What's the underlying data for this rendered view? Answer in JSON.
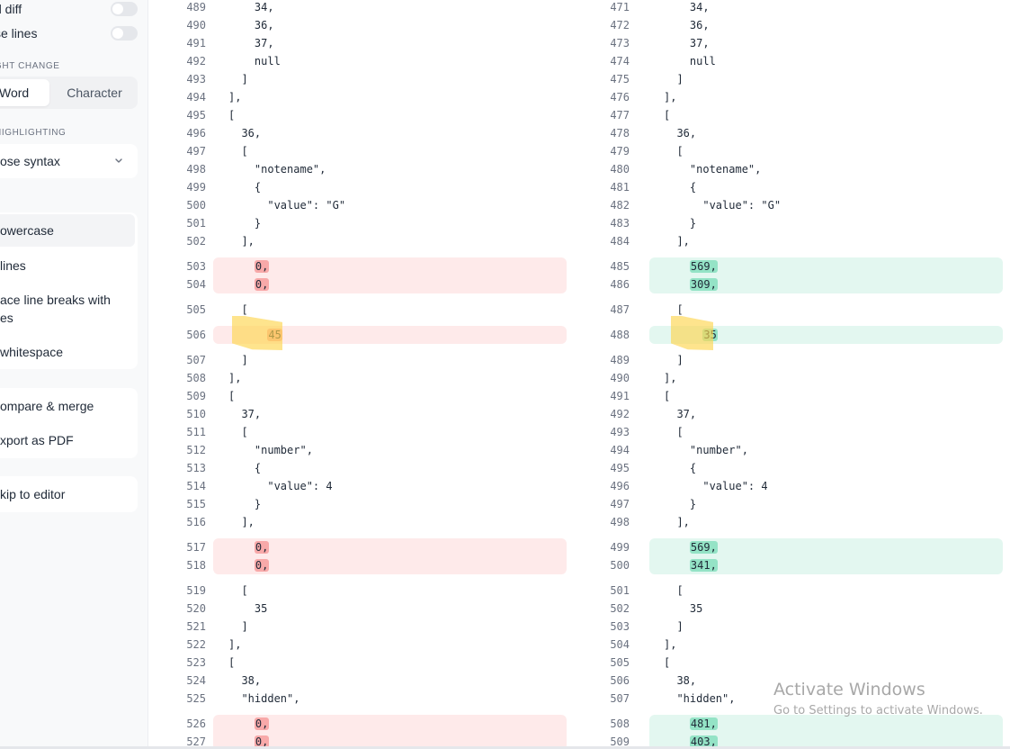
{
  "sidebar": {
    "toggles": [
      {
        "label": "d diff",
        "on": false
      },
      {
        "label": "se lines",
        "on": false
      }
    ],
    "highlight_change": {
      "section_label": "GHT CHANGE",
      "options": [
        "Word",
        "Character"
      ],
      "selected": "Word"
    },
    "syntax_highlighting": {
      "section_label": "HIGHLIGHTING",
      "selected": "ose syntax",
      "icon": "chevron-down-icon"
    },
    "transform_items": [
      {
        "label": "owercase",
        "active": true
      },
      {
        "label": "lines",
        "active": false
      },
      {
        "label": "ace line breaks with",
        "label2": "es",
        "active": false
      },
      {
        "label": " whitespace",
        "active": false
      }
    ],
    "action_items": [
      {
        "label": "ompare & merge"
      },
      {
        "label": "xport as PDF"
      }
    ],
    "skip_item": {
      "label": "kip to editor"
    }
  },
  "diff": {
    "colors": {
      "deleted_bg": "#feeaea",
      "deleted_token": "#f8a9a9",
      "added_bg": "#e3f7f0",
      "added_token": "#94e3c6",
      "annotation": "#fdd650"
    },
    "left": {
      "lines": [
        {
          "n": "489",
          "text": "    34,"
        },
        {
          "n": "490",
          "text": "    36,"
        },
        {
          "n": "491",
          "text": "    37,"
        },
        {
          "n": "492",
          "text": "    null"
        },
        {
          "n": "493",
          "text": "  ]"
        },
        {
          "n": "494",
          "text": "],"
        },
        {
          "n": "495",
          "text": "["
        },
        {
          "n": "496",
          "text": "  36,"
        },
        {
          "n": "497",
          "text": "  ["
        },
        {
          "n": "498",
          "text": "    \"notename\","
        },
        {
          "n": "499",
          "text": "    {"
        },
        {
          "n": "500",
          "text": "      \"value\": \"G\""
        },
        {
          "n": "501",
          "text": "    }"
        },
        {
          "n": "502",
          "text": "  ],"
        },
        {
          "n": "503",
          "text": "0,",
          "changed": true
        },
        {
          "n": "504",
          "text": "0,",
          "changed": true
        },
        {
          "n": "505",
          "text": "  ["
        },
        {
          "n": "506",
          "text": "45",
          "changed": true
        },
        {
          "n": "507",
          "text": "  ]"
        },
        {
          "n": "508",
          "text": "],"
        },
        {
          "n": "509",
          "text": "["
        },
        {
          "n": "510",
          "text": "  37,"
        },
        {
          "n": "511",
          "text": "  ["
        },
        {
          "n": "512",
          "text": "    \"number\","
        },
        {
          "n": "513",
          "text": "    {"
        },
        {
          "n": "514",
          "text": "      \"value\": 4"
        },
        {
          "n": "515",
          "text": "    }"
        },
        {
          "n": "516",
          "text": "  ],"
        },
        {
          "n": "517",
          "text": "0,",
          "changed": true
        },
        {
          "n": "518",
          "text": "0,",
          "changed": true
        },
        {
          "n": "519",
          "text": "  ["
        },
        {
          "n": "520",
          "text": "    35"
        },
        {
          "n": "521",
          "text": "  ]"
        },
        {
          "n": "522",
          "text": "],"
        },
        {
          "n": "523",
          "text": "["
        },
        {
          "n": "524",
          "text": "  38,"
        },
        {
          "n": "525",
          "text": "  \"hidden\","
        },
        {
          "n": "526",
          "text": "0,",
          "changed": true
        },
        {
          "n": "527",
          "text": "0,",
          "changed": true
        }
      ]
    },
    "right": {
      "lines": [
        {
          "n": "471",
          "text": "    34,"
        },
        {
          "n": "472",
          "text": "    36,"
        },
        {
          "n": "473",
          "text": "    37,"
        },
        {
          "n": "474",
          "text": "    null"
        },
        {
          "n": "475",
          "text": "  ]"
        },
        {
          "n": "476",
          "text": "],"
        },
        {
          "n": "477",
          "text": "["
        },
        {
          "n": "478",
          "text": "  36,"
        },
        {
          "n": "479",
          "text": "  ["
        },
        {
          "n": "480",
          "text": "    \"notename\","
        },
        {
          "n": "481",
          "text": "    {"
        },
        {
          "n": "482",
          "text": "      \"value\": \"G\""
        },
        {
          "n": "483",
          "text": "    }"
        },
        {
          "n": "484",
          "text": "  ],"
        },
        {
          "n": "485",
          "text": "569,",
          "changed": true
        },
        {
          "n": "486",
          "text": "309,",
          "changed": true
        },
        {
          "n": "487",
          "text": "  ["
        },
        {
          "n": "488",
          "text": "35",
          "changed": true
        },
        {
          "n": "489",
          "text": "  ]"
        },
        {
          "n": "490",
          "text": "],"
        },
        {
          "n": "491",
          "text": "["
        },
        {
          "n": "492",
          "text": "  37,"
        },
        {
          "n": "493",
          "text": "  ["
        },
        {
          "n": "494",
          "text": "    \"number\","
        },
        {
          "n": "495",
          "text": "    {"
        },
        {
          "n": "496",
          "text": "      \"value\": 4"
        },
        {
          "n": "497",
          "text": "    }"
        },
        {
          "n": "498",
          "text": "  ],"
        },
        {
          "n": "499",
          "text": "569,",
          "changed": true
        },
        {
          "n": "500",
          "text": "341,",
          "changed": true
        },
        {
          "n": "501",
          "text": "  ["
        },
        {
          "n": "502",
          "text": "    35"
        },
        {
          "n": "503",
          "text": "  ]"
        },
        {
          "n": "504",
          "text": "],"
        },
        {
          "n": "505",
          "text": "["
        },
        {
          "n": "506",
          "text": "  38,"
        },
        {
          "n": "507",
          "text": "  \"hidden\","
        },
        {
          "n": "508",
          "text": "481,",
          "changed": true
        },
        {
          "n": "509",
          "text": "403,",
          "changed": true
        }
      ]
    }
  },
  "watermark": {
    "title": "Activate Windows",
    "subtitle": "Go to Settings to activate Windows."
  }
}
